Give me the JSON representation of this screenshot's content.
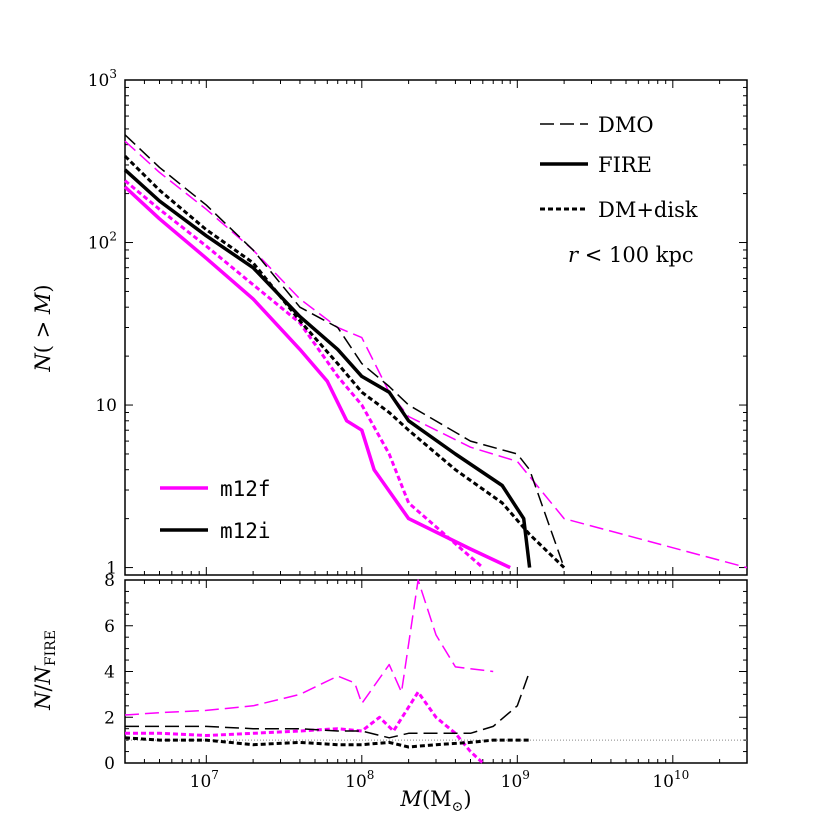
{
  "chart_data": [
    {
      "type": "line",
      "panel": "top",
      "xscale": "log",
      "yscale": "log",
      "xlim": [
        3000000,
        30000000000
      ],
      "ylim": [
        0.9,
        1000
      ],
      "xlabel": "",
      "ylabel": "N( > M)",
      "yticks": [
        {
          "value": 1,
          "label": "1"
        },
        {
          "value": 10,
          "label": "10"
        },
        {
          "value": 100,
          "label": "10",
          "sup": "2"
        },
        {
          "value": 1000,
          "label": "10",
          "sup": "3"
        }
      ],
      "linestyle_legend": [
        {
          "label": "DMO",
          "style": "dashed"
        },
        {
          "label": "FIRE",
          "style": "solid"
        },
        {
          "label": "DM+disk",
          "style": "dotted"
        }
      ],
      "annotation": "r < 100 kpc",
      "color_legend": [
        {
          "label": "m12f",
          "color": "#ff00ff"
        },
        {
          "label": "m12i",
          "color": "#000000"
        }
      ],
      "series": [
        {
          "halo": "m12f",
          "style": "dashed",
          "color": "#ff00ff",
          "points": [
            [
              3000000,
              420
            ],
            [
              5000000,
              270
            ],
            [
              10000000,
              160
            ],
            [
              20000000,
              90
            ],
            [
              40000000,
              45
            ],
            [
              70000000,
              30
            ],
            [
              100000000,
              26
            ],
            [
              150000000,
              12
            ],
            [
              200000000,
              8.5
            ],
            [
              500000000,
              5.5
            ],
            [
              1000000000,
              4.5
            ],
            [
              2000000000,
              2
            ],
            [
              30000000000,
              1
            ]
          ]
        },
        {
          "halo": "m12f",
          "style": "solid",
          "color": "#ff00ff",
          "points": [
            [
              3000000,
              220
            ],
            [
              5000000,
              140
            ],
            [
              10000000,
              80
            ],
            [
              20000000,
              45
            ],
            [
              40000000,
              22
            ],
            [
              60000000,
              14
            ],
            [
              80000000,
              8
            ],
            [
              100000000,
              7
            ],
            [
              120000000,
              4
            ],
            [
              200000000,
              2
            ],
            [
              500000000,
              1.3
            ],
            [
              900000000,
              1
            ]
          ]
        },
        {
          "halo": "m12f",
          "style": "dotted",
          "color": "#ff00ff",
          "points": [
            [
              3000000,
              240
            ],
            [
              5000000,
              160
            ],
            [
              10000000,
              95
            ],
            [
              20000000,
              55
            ],
            [
              40000000,
              32
            ],
            [
              70000000,
              15
            ],
            [
              100000000,
              10
            ],
            [
              150000000,
              5
            ],
            [
              200000000,
              2.5
            ],
            [
              400000000,
              1.4
            ],
            [
              600000000,
              1
            ]
          ]
        },
        {
          "halo": "m12i",
          "style": "dashed",
          "color": "#000000",
          "points": [
            [
              3000000,
              460
            ],
            [
              5000000,
              290
            ],
            [
              10000000,
              170
            ],
            [
              20000000,
              90
            ],
            [
              40000000,
              40
            ],
            [
              70000000,
              30
            ],
            [
              100000000,
              18
            ],
            [
              150000000,
              13
            ],
            [
              200000000,
              10
            ],
            [
              500000000,
              6
            ],
            [
              1000000000,
              5
            ],
            [
              1200000000,
              4
            ],
            [
              2000000000,
              1
            ]
          ]
        },
        {
          "halo": "m12i",
          "style": "solid",
          "color": "#000000",
          "points": [
            [
              3000000,
              280
            ],
            [
              5000000,
              180
            ],
            [
              10000000,
              110
            ],
            [
              20000000,
              70
            ],
            [
              40000000,
              35
            ],
            [
              70000000,
              22
            ],
            [
              100000000,
              15
            ],
            [
              150000000,
              12
            ],
            [
              200000000,
              8
            ],
            [
              400000000,
              5
            ],
            [
              800000000,
              3.2
            ],
            [
              1100000000,
              2
            ],
            [
              1200000000,
              1
            ]
          ]
        },
        {
          "halo": "m12i",
          "style": "dotted",
          "color": "#000000",
          "points": [
            [
              3000000,
              340
            ],
            [
              5000000,
              210
            ],
            [
              10000000,
              120
            ],
            [
              20000000,
              75
            ],
            [
              40000000,
              33
            ],
            [
              70000000,
              18
            ],
            [
              100000000,
              12
            ],
            [
              150000000,
              9
            ],
            [
              200000000,
              7
            ],
            [
              400000000,
              4
            ],
            [
              800000000,
              2.5
            ],
            [
              1200000000,
              1.6
            ],
            [
              2000000000,
              1
            ]
          ]
        }
      ]
    },
    {
      "type": "line",
      "panel": "bottom",
      "xscale": "log",
      "yscale": "linear",
      "xlim": [
        3000000,
        30000000000
      ],
      "ylim": [
        0,
        8
      ],
      "xlabel": "M (M⊙)",
      "ylabel": "N/N_FIRE",
      "yticks": [
        0,
        2,
        4,
        6,
        8
      ],
      "xticks": [
        {
          "value": 10000000,
          "label": "10",
          "sup": "7"
        },
        {
          "value": 100000000,
          "label": "10",
          "sup": "8"
        },
        {
          "value": 1000000000,
          "label": "10",
          "sup": "9"
        },
        {
          "value": 10000000000,
          "label": "10",
          "sup": "10"
        }
      ],
      "reference_line": 1,
      "series": [
        {
          "halo": "m12f",
          "style": "dashed",
          "color": "#ff00ff",
          "points": [
            [
              3000000,
              2.1
            ],
            [
              5000000,
              2.2
            ],
            [
              10000000,
              2.3
            ],
            [
              20000000,
              2.5
            ],
            [
              40000000,
              3.0
            ],
            [
              70000000,
              3.8
            ],
            [
              90000000,
              3.5
            ],
            [
              100000000,
              2.6
            ],
            [
              150000000,
              4.3
            ],
            [
              180000000,
              3.1
            ],
            [
              230000000,
              8
            ],
            [
              300000000,
              5.6
            ],
            [
              400000000,
              4.2
            ],
            [
              700000000,
              4.0
            ]
          ]
        },
        {
          "halo": "m12f",
          "style": "dotted",
          "color": "#ff00ff",
          "points": [
            [
              3000000,
              1.3
            ],
            [
              5000000,
              1.3
            ],
            [
              10000000,
              1.2
            ],
            [
              20000000,
              1.3
            ],
            [
              40000000,
              1.4
            ],
            [
              70000000,
              1.5
            ],
            [
              100000000,
              1.4
            ],
            [
              130000000,
              2.0
            ],
            [
              160000000,
              1.4
            ],
            [
              230000000,
              3.1
            ],
            [
              300000000,
              2.0
            ],
            [
              400000000,
              1.3
            ],
            [
              500000000,
              0.5
            ],
            [
              600000000,
              0
            ]
          ]
        },
        {
          "halo": "m12i",
          "style": "dashed",
          "color": "#000000",
          "points": [
            [
              3000000,
              1.6
            ],
            [
              5000000,
              1.6
            ],
            [
              10000000,
              1.6
            ],
            [
              20000000,
              1.5
            ],
            [
              40000000,
              1.5
            ],
            [
              70000000,
              1.4
            ],
            [
              100000000,
              1.4
            ],
            [
              150000000,
              1.1
            ],
            [
              200000000,
              1.3
            ],
            [
              300000000,
              1.3
            ],
            [
              500000000,
              1.3
            ],
            [
              700000000,
              1.6
            ],
            [
              1000000000,
              2.5
            ],
            [
              1200000000,
              4.0
            ]
          ]
        },
        {
          "halo": "m12i",
          "style": "dotted",
          "color": "#000000",
          "points": [
            [
              3000000,
              1.1
            ],
            [
              5000000,
              1.0
            ],
            [
              10000000,
              1.0
            ],
            [
              20000000,
              0.8
            ],
            [
              40000000,
              0.9
            ],
            [
              70000000,
              0.8
            ],
            [
              100000000,
              0.8
            ],
            [
              150000000,
              0.9
            ],
            [
              200000000,
              0.7
            ],
            [
              300000000,
              0.8
            ],
            [
              500000000,
              0.9
            ],
            [
              700000000,
              1.0
            ],
            [
              1000000000,
              1.0
            ],
            [
              1200000000,
              1.0
            ]
          ]
        }
      ]
    }
  ]
}
